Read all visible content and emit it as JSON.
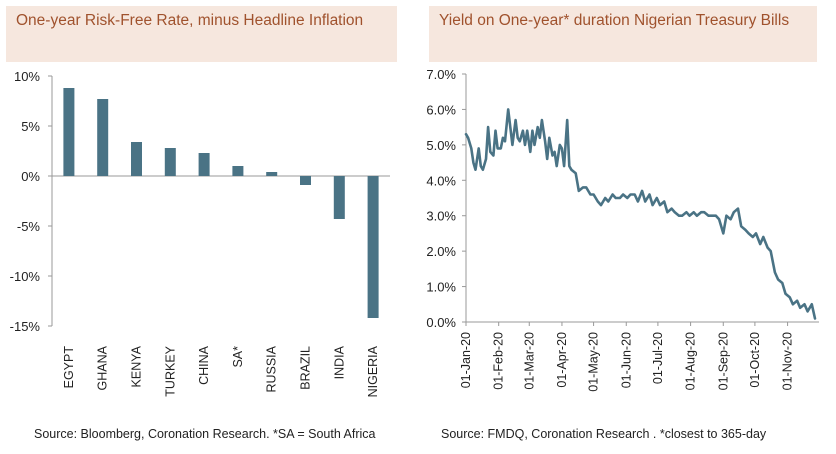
{
  "charts": {
    "left": {
      "title": "One-year Risk-Free Rate, minus Headline Inflation",
      "source": "Source: Bloomberg, Coronation Research. *SA = South Africa"
    },
    "right": {
      "title": "Yield on One-year* duration Nigerian Treasury Bills",
      "source": "Source: FMDQ, Coronation Research . *closest to 365-day"
    }
  },
  "colors": {
    "series": "#4a7385",
    "title_bg": "#f6e7de",
    "title_text": "#a0522d"
  },
  "chart_data": [
    {
      "type": "bar",
      "title": "One-year Risk-Free Rate, minus Headline Inflation",
      "categories": [
        "EGYPT",
        "GHANA",
        "KENYA",
        "TURKEY",
        "CHINA",
        "SA*",
        "RUSSIA",
        "BRAZIL",
        "INDIA",
        "NIGERIA"
      ],
      "values": [
        8.8,
        7.7,
        3.4,
        2.8,
        2.3,
        1.0,
        0.4,
        -0.9,
        -4.3,
        -14.2
      ],
      "yticks": [
        "10%",
        "5%",
        "0%",
        "-5%",
        "-10%",
        "-15%"
      ],
      "ylim": [
        -15,
        10
      ],
      "grid": false
    },
    {
      "type": "line",
      "title": "Yield on One-year* duration Nigerian Treasury Bills",
      "xticks": [
        "01-Jan-20",
        "01-Feb-20",
        "01-Mar-20",
        "01-Apr-20",
        "01-May-20",
        "01-Jun-20",
        "01-Jul-20",
        "01-Aug-20",
        "01-Sep-20",
        "01-Oct-20",
        "01-Nov-20"
      ],
      "yticks": [
        "7.0%",
        "6.0%",
        "5.0%",
        "4.0%",
        "3.0%",
        "2.0%",
        "1.0%",
        "0.0%"
      ],
      "ylim": [
        0,
        7
      ],
      "grid": false,
      "series": [
        {
          "x": [
            "2020-01-01",
            "2020-01-03",
            "2020-01-06",
            "2020-01-08",
            "2020-01-10",
            "2020-01-13",
            "2020-01-15",
            "2020-01-17",
            "2020-01-20",
            "2020-01-22",
            "2020-01-24",
            "2020-01-27",
            "2020-01-29",
            "2020-01-31",
            "2020-02-03",
            "2020-02-05",
            "2020-02-07",
            "2020-02-10",
            "2020-02-12",
            "2020-02-14",
            "2020-02-17",
            "2020-02-19",
            "2020-02-21",
            "2020-02-24",
            "2020-02-26",
            "2020-02-28",
            "2020-03-02",
            "2020-03-04",
            "2020-03-06",
            "2020-03-09",
            "2020-03-11",
            "2020-03-13",
            "2020-03-16",
            "2020-03-18",
            "2020-03-20",
            "2020-03-23",
            "2020-03-25",
            "2020-03-27",
            "2020-03-30",
            "2020-04-01",
            "2020-04-03",
            "2020-04-06",
            "2020-04-08",
            "2020-04-10",
            "2020-04-14",
            "2020-04-17",
            "2020-04-21",
            "2020-04-24",
            "2020-04-28",
            "2020-05-01",
            "2020-05-05",
            "2020-05-08",
            "2020-05-12",
            "2020-05-15",
            "2020-05-19",
            "2020-05-22",
            "2020-05-26",
            "2020-05-29",
            "2020-06-02",
            "2020-06-05",
            "2020-06-09",
            "2020-06-12",
            "2020-06-16",
            "2020-06-19",
            "2020-06-23",
            "2020-06-26",
            "2020-06-30",
            "2020-07-03",
            "2020-07-07",
            "2020-07-10",
            "2020-07-14",
            "2020-07-17",
            "2020-07-21",
            "2020-07-24",
            "2020-07-28",
            "2020-07-31",
            "2020-08-04",
            "2020-08-07",
            "2020-08-11",
            "2020-08-14",
            "2020-08-18",
            "2020-08-21",
            "2020-08-25",
            "2020-08-28",
            "2020-09-01",
            "2020-09-04",
            "2020-09-08",
            "2020-09-11",
            "2020-09-15",
            "2020-09-18",
            "2020-09-22",
            "2020-09-25",
            "2020-09-29",
            "2020-10-02",
            "2020-10-06",
            "2020-10-09",
            "2020-10-13",
            "2020-10-16",
            "2020-10-20",
            "2020-10-23",
            "2020-10-27",
            "2020-10-30",
            "2020-11-03",
            "2020-11-06",
            "2020-11-10",
            "2020-11-13",
            "2020-11-17",
            "2020-11-20",
            "2020-11-24",
            "2020-11-27"
          ],
          "y": [
            5.3,
            5.2,
            4.9,
            4.5,
            4.3,
            4.9,
            4.4,
            4.3,
            4.6,
            5.5,
            4.8,
            4.7,
            5.4,
            4.9,
            4.9,
            5.2,
            5.1,
            6.0,
            5.5,
            5.0,
            5.7,
            5.2,
            5.1,
            5.4,
            5.0,
            5.4,
            4.8,
            5.4,
            5.0,
            5.5,
            5.2,
            5.7,
            5.1,
            4.6,
            5.2,
            4.7,
            4.8,
            4.4,
            5.0,
            4.9,
            4.4,
            5.7,
            4.4,
            4.3,
            4.2,
            3.7,
            3.8,
            3.8,
            3.6,
            3.6,
            3.4,
            3.3,
            3.5,
            3.4,
            3.6,
            3.5,
            3.5,
            3.6,
            3.5,
            3.6,
            3.6,
            3.4,
            3.7,
            3.4,
            3.6,
            3.3,
            3.5,
            3.3,
            3.4,
            3.1,
            3.2,
            3.1,
            3.0,
            3.0,
            3.1,
            3.0,
            3.1,
            3.0,
            3.1,
            3.1,
            3.0,
            3.0,
            3.0,
            2.9,
            2.5,
            3.0,
            2.9,
            3.1,
            3.2,
            2.7,
            2.6,
            2.5,
            2.4,
            2.5,
            2.2,
            2.4,
            2.1,
            2.0,
            1.4,
            1.2,
            1.1,
            0.8,
            0.7,
            0.5,
            0.6,
            0.4,
            0.5,
            0.3,
            0.5,
            0.1
          ]
        }
      ]
    }
  ]
}
